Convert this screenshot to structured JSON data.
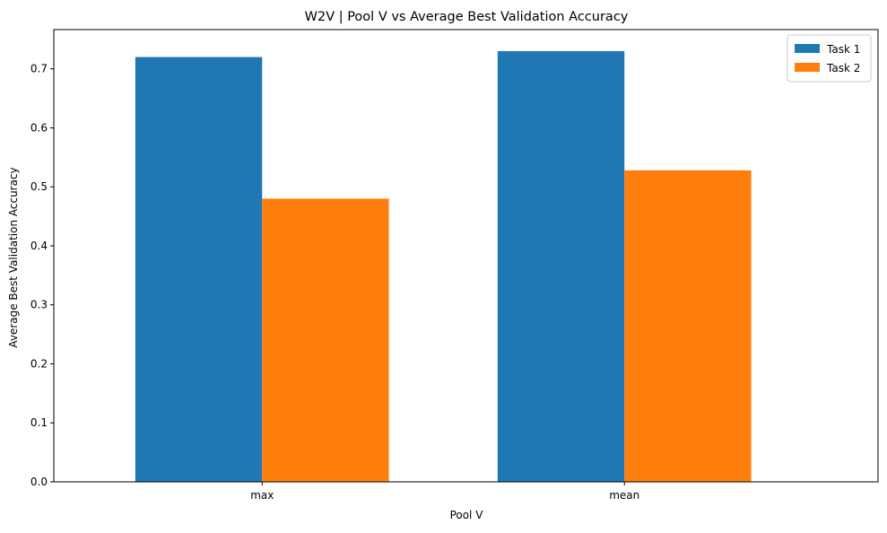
{
  "chart_data": {
    "type": "bar",
    "title": "W2V | Pool V vs Average Best Validation Accuracy",
    "xlabel": "Pool V",
    "ylabel": "Average Best Validation Accuracy",
    "categories": [
      "max",
      "mean"
    ],
    "series": [
      {
        "name": "Task 1",
        "color": "#1f77b4",
        "values": [
          0.72,
          0.73
        ]
      },
      {
        "name": "Task 2",
        "color": "#ff7f0e",
        "values": [
          0.48,
          0.528
        ]
      }
    ],
    "ylim": [
      0,
      0.7665
    ],
    "yticks": [
      0.0,
      0.1,
      0.2,
      0.3,
      0.4,
      0.5,
      0.6,
      0.7
    ],
    "ytick_labels": [
      "0.0",
      "0.1",
      "0.2",
      "0.3",
      "0.4",
      "0.5",
      "0.6",
      "0.7"
    ],
    "grid": false,
    "legend_position": "top-right"
  }
}
